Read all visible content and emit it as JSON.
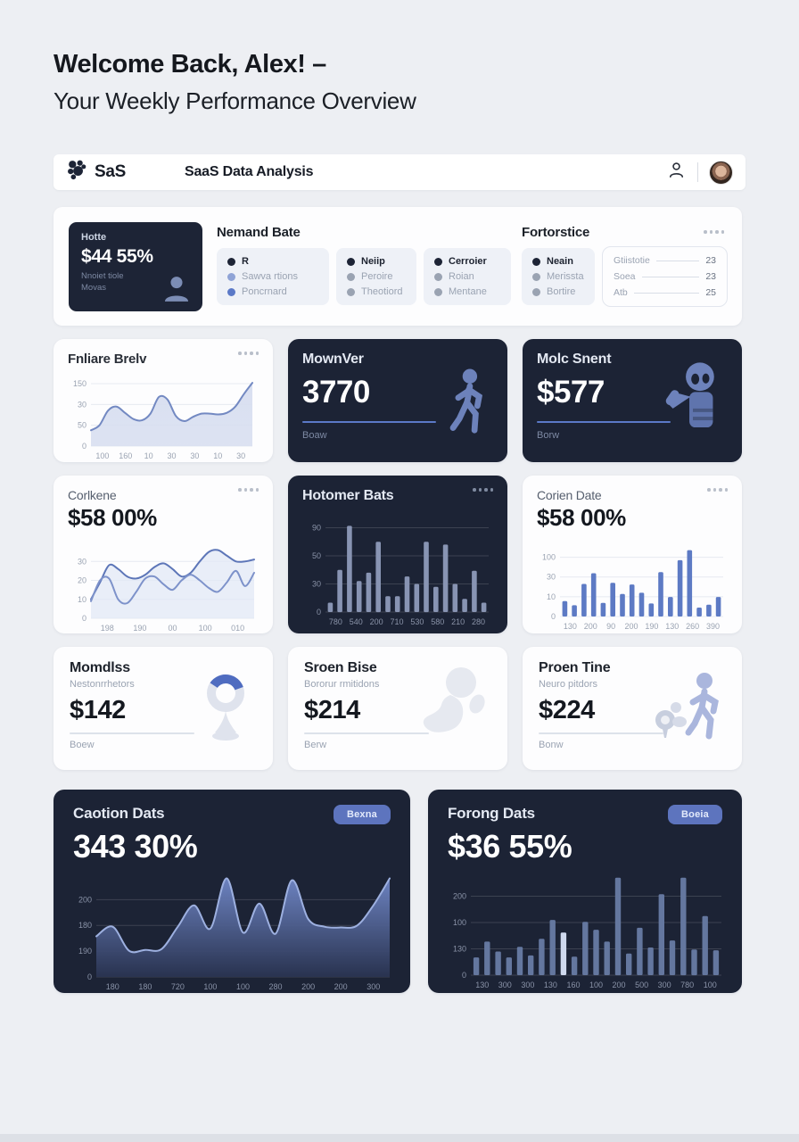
{
  "colors": {
    "accent": "#5b79c7",
    "dark_card": "#1c2335",
    "page_bg": "#edeff3"
  },
  "header": {
    "line1": "Welcome Back, Alex! –",
    "line2": "Your Weekly Performance Overview"
  },
  "navbar": {
    "logo_text": "SaS",
    "app_title": "SaaS Data Analysis"
  },
  "overview": {
    "stat_card": {
      "label": "Hotte",
      "value": "$44 55%",
      "sub1": "Nnoiet tiole",
      "sub2": "Movas"
    },
    "group1_title": "Nemand Bate",
    "group2_title": "Fortorstice",
    "legends": [
      {
        "items": [
          {
            "label": "R",
            "color": "#1d2436"
          },
          {
            "label": "Sawva rtions",
            "color": "#8fa3d6"
          },
          {
            "label": "Poncrnard",
            "color": "#5b79c7"
          }
        ]
      },
      {
        "items": [
          {
            "label": "Neiip",
            "color": "#1d2436"
          },
          {
            "label": "Peroire",
            "color": "#9aa3b2"
          },
          {
            "label": "Theotiord",
            "color": "#9aa3b2"
          }
        ]
      },
      {
        "items": [
          {
            "label": "Cerroier",
            "color": "#1d2436"
          },
          {
            "label": "Roian",
            "color": "#9aa3b2"
          },
          {
            "label": "Mentane",
            "color": "#9aa3b2"
          }
        ]
      },
      {
        "items": [
          {
            "label": "Neain",
            "color": "#1d2436"
          },
          {
            "label": "Merissta",
            "color": "#9aa3b2"
          },
          {
            "label": "Bortire",
            "color": "#9aa3b2"
          }
        ]
      }
    ],
    "stats_list": [
      {
        "label": "Gtiistotie",
        "value": "23"
      },
      {
        "label": "Soea",
        "value": "23"
      },
      {
        "label": "Atb",
        "value": "25"
      }
    ]
  },
  "cards": {
    "fnliare": {
      "title": "Fnliare Brelv"
    },
    "mownver": {
      "title": "MownVer",
      "value": "3770",
      "sub": "Boaw"
    },
    "molc": {
      "title": "Molc Snent",
      "value": "$577",
      "sub": "Borw"
    },
    "corlkene": {
      "title": "Corlkene",
      "value": "$58 00%"
    },
    "hotomer": {
      "title": "Hotomer Bats"
    },
    "corien": {
      "title": "Corien Date",
      "value": "$58 00%"
    },
    "momdlss": {
      "title": "Momdlss",
      "subtitle": "Nestonrrhetors",
      "value": "$142",
      "foot": "Boew"
    },
    "sroen": {
      "title": "Sroen Bise",
      "subtitle": "Bororur rmitidons",
      "value": "$214",
      "foot": "Berw"
    },
    "proen": {
      "title": "Proen Tine",
      "subtitle": "Neuro pitdors",
      "value": "$224",
      "foot": "Bonw"
    },
    "caotion": {
      "title": "Caotion Dats",
      "badge": "Bexna",
      "value": "343 30%"
    },
    "forong": {
      "title": "Forong Dats",
      "badge": "Boeia",
      "value": "$36 55%"
    }
  },
  "chart_data": [
    {
      "id": "fnliare",
      "type": "area",
      "title": "Fnliare Brelv",
      "values": [
        38,
        50,
        85,
        95,
        80,
        65,
        62,
        78,
        118,
        112,
        72,
        60,
        70,
        78,
        78,
        76,
        80,
        95,
        125,
        152
      ],
      "ylim": [
        0,
        165
      ],
      "grid_top": 150,
      "y_ticks": [
        "150",
        "30",
        "50",
        "0"
      ],
      "x_ticks": [
        "100",
        "160",
        "10",
        "30",
        "30",
        "10",
        "30"
      ],
      "stroke": "#7389c2",
      "fill_from": "rgba(215,222,240,0.95)",
      "fill_to": "rgba(215,222,240,0.85)",
      "grid": "#e6eaf1",
      "axis": "#9aa3b2"
    },
    {
      "id": "corlkene",
      "type": "line",
      "title": "Corlkene",
      "series": [
        {
          "name": "series-a",
          "values": [
            10,
            19,
            28,
            26,
            22,
            21,
            23,
            27,
            29,
            26,
            22,
            24,
            30,
            35,
            36,
            33,
            30,
            30,
            31
          ],
          "stroke": "#5d76b8"
        },
        {
          "name": "series-b",
          "values": [
            9,
            20,
            21,
            10,
            8,
            14,
            21,
            22,
            18,
            15,
            20,
            23,
            20,
            16,
            14,
            19,
            25,
            17,
            24
          ],
          "stroke": "#7d92ca"
        }
      ],
      "ylim": [
        0,
        40
      ],
      "grid_top": 30,
      "y_ticks": [
        "30",
        "20",
        "10",
        "0"
      ],
      "x_ticks": [
        "198",
        "190",
        "00",
        "100",
        "010"
      ],
      "fill": "rgba(226,232,245,0.75)",
      "grid": "#e6eaf1",
      "axis": "#9aa3b2"
    },
    {
      "id": "hotomer",
      "type": "bar",
      "title": "Hotomer Bats",
      "values": [
        10,
        45,
        92,
        33,
        42,
        75,
        17,
        17,
        38,
        30,
        75,
        27,
        72,
        30,
        14,
        44,
        10
      ],
      "ylim": [
        0,
        100
      ],
      "grid_top": 90,
      "y_ticks": [
        "90",
        "50",
        "30",
        "0"
      ],
      "x_ticks": [
        "780",
        "540",
        "200",
        "710",
        "530",
        "580",
        "210",
        "280"
      ],
      "bar": "#8894b3",
      "grid": "rgba(255,255,255,0.14)",
      "axis": "#8a93a8"
    },
    {
      "id": "corien",
      "type": "bar",
      "title": "Corien Date",
      "values": [
        26,
        19,
        55,
        73,
        23,
        57,
        38,
        54,
        40,
        22,
        75,
        33,
        95,
        112,
        15,
        20,
        33
      ],
      "ylim": [
        0,
        125
      ],
      "grid_top": 100,
      "y_ticks": [
        "100",
        "30",
        "10",
        "0"
      ],
      "x_ticks": [
        "130",
        "200",
        "90",
        "200",
        "190",
        "130",
        "260",
        "390"
      ],
      "bar": "#5d7ac4",
      "grid": "#e6eaf1",
      "axis": "#9aa3b2"
    },
    {
      "id": "caotion",
      "type": "area",
      "title": "Caotion Dats",
      "values": [
        105,
        130,
        68,
        70,
        72,
        130,
        185,
        125,
        255,
        115,
        190,
        112,
        250,
        150,
        130,
        128,
        133,
        185,
        255
      ],
      "ylim": [
        0,
        270
      ],
      "grid_top": 200,
      "y_ticks": [
        "200",
        "180",
        "190",
        "0"
      ],
      "x_ticks": [
        "180",
        "180",
        "720",
        "100",
        "100",
        "280",
        "200",
        "200",
        "300"
      ],
      "stroke": "#9db0e0",
      "fill_from": "rgba(113,136,200,0.95)",
      "fill_to": "rgba(42,52,82,0.92)",
      "grid": "rgba(255,255,255,0.14)",
      "axis": "#8a93a8"
    },
    {
      "id": "forong",
      "type": "bar",
      "title": "Forong Dats",
      "values": [
        45,
        85,
        60,
        45,
        72,
        50,
        92,
        140,
        108,
        47,
        135,
        115,
        85,
        247,
        55,
        120,
        70,
        205,
        88,
        247,
        65,
        150,
        63
      ],
      "highlight_index": 8,
      "ylim": [
        0,
        260
      ],
      "grid_top": 200,
      "y_ticks": [
        "200",
        "100",
        "130",
        "0"
      ],
      "x_ticks": [
        "130",
        "300",
        "300",
        "130",
        "160",
        "100",
        "200",
        "500",
        "300",
        "780",
        "100"
      ],
      "bar": "#64779f",
      "highlight": "#cfd9ee",
      "grid": "rgba(255,255,255,0.14)",
      "axis": "#8a93a8"
    }
  ]
}
